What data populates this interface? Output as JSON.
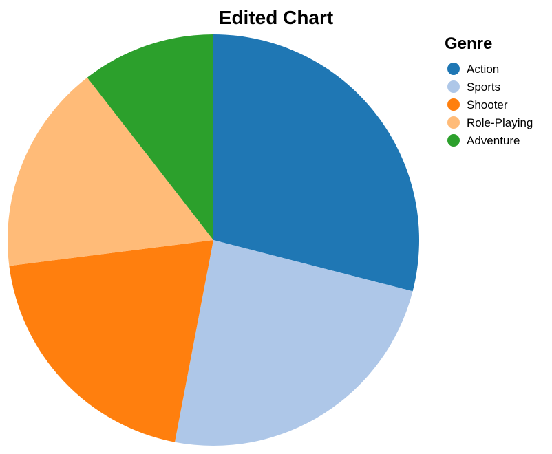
{
  "chart_data": {
    "type": "pie",
    "title": "Edited Chart",
    "legend": {
      "title": "Genre",
      "position": "top-right"
    },
    "start_angle": "12 o'clock",
    "direction": "clockwise",
    "slices": [
      {
        "label": "Action",
        "value": 29.0,
        "color": "#1f77b4"
      },
      {
        "label": "Sports",
        "value": 24.0,
        "color": "#aec7e8"
      },
      {
        "label": "Shooter",
        "value": 20.0,
        "color": "#ff7f0e"
      },
      {
        "label": "Role-Playing",
        "value": 16.5,
        "color": "#ffbb78"
      },
      {
        "label": "Adventure",
        "value": 10.5,
        "color": "#2ca02c"
      }
    ]
  }
}
